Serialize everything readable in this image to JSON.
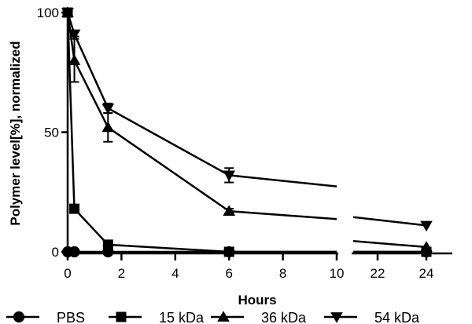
{
  "chart_data": {
    "type": "line",
    "xlabel": "Hours",
    "ylabel": "Polymer level[%], normalized",
    "ylim": [
      0,
      100
    ],
    "yticks": [
      0,
      50,
      100
    ],
    "x_segments": [
      {
        "range": [
          0,
          10
        ],
        "ticks": [
          0,
          2,
          4,
          6,
          8,
          10
        ]
      },
      {
        "range": [
          21,
          25
        ],
        "ticks": [
          22,
          24
        ]
      }
    ],
    "legend_position": "bottom",
    "grid": false,
    "series": [
      {
        "name": "PBS",
        "marker": "circle",
        "x": [
          0,
          0.25,
          1.5,
          6,
          24
        ],
        "y": [
          0,
          0,
          0,
          0,
          0
        ],
        "err": [
          0,
          0,
          0,
          0,
          0
        ]
      },
      {
        "name": "15 kDa",
        "marker": "square",
        "x": [
          0,
          0.25,
          1.5,
          6,
          24
        ],
        "y": [
          100,
          18,
          3,
          0,
          0
        ],
        "err": [
          0,
          1,
          0,
          0,
          0
        ]
      },
      {
        "name": "36 kDa",
        "marker": "triangle-up",
        "x": [
          0,
          0.25,
          1.5,
          6,
          24
        ],
        "y": [
          100,
          80,
          52,
          17,
          2
        ],
        "err": [
          0,
          9,
          6,
          1,
          0
        ]
      },
      {
        "name": "54 kDa",
        "marker": "triangle-down",
        "x": [
          0,
          0.25,
          1.5,
          6,
          24
        ],
        "y": [
          100,
          91,
          60,
          32,
          11
        ],
        "err": [
          0,
          1,
          2,
          3,
          0
        ]
      }
    ]
  }
}
